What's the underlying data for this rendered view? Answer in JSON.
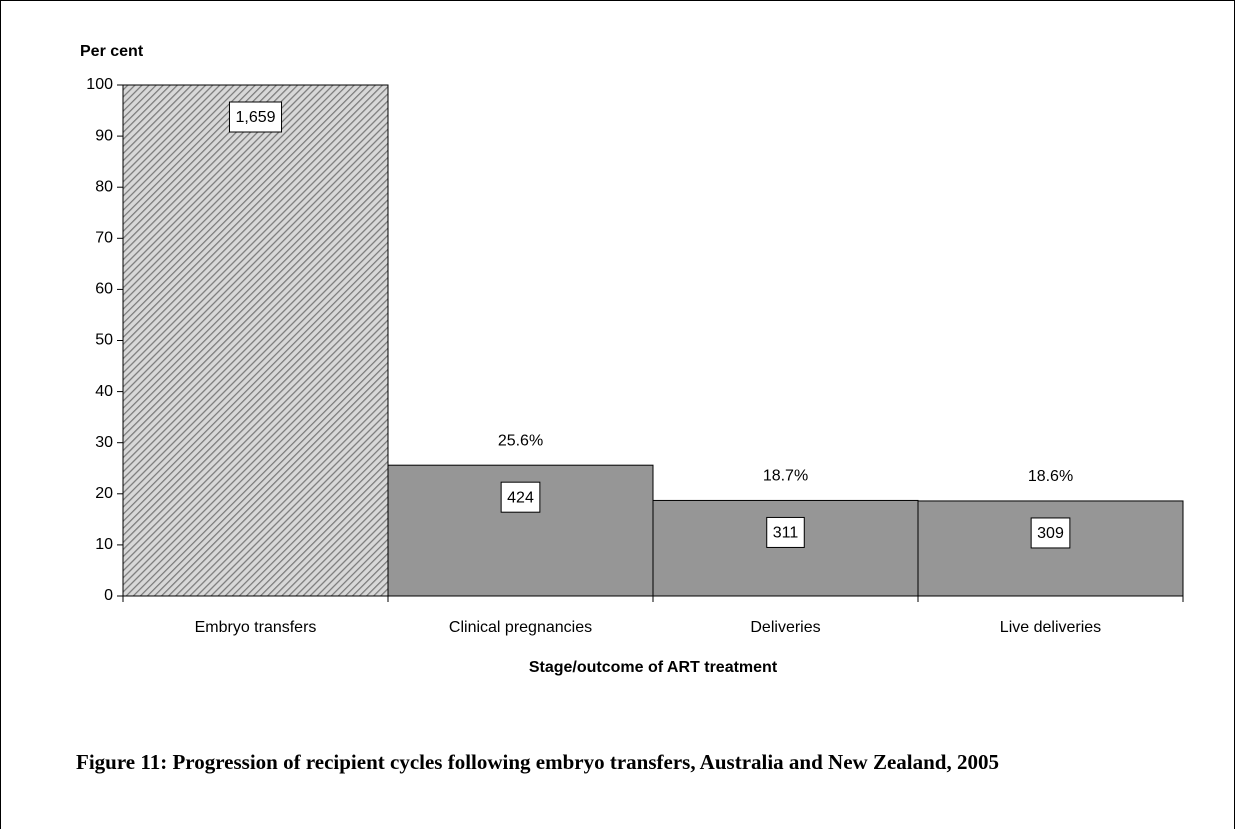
{
  "chart_data": {
    "type": "bar",
    "title": "Figure 11: Progression of recipient cycles following embryo transfers, Australia and New Zealand, 2005",
    "y_axis_label": "Per cent",
    "x_axis_label": "Stage/outcome of ART treatment",
    "categories": [
      "Embryo transfers",
      "Clinical pregnancies",
      "Deliveries",
      "Live deliveries"
    ],
    "values": [
      100,
      25.6,
      18.7,
      18.6
    ],
    "value_labels": [
      null,
      "25.6%",
      "18.7%",
      "18.6%"
    ],
    "counts": [
      {
        "value": 1659,
        "label": "1,659"
      },
      424,
      311,
      309
    ],
    "color": "#969696",
    "hatched": [
      true,
      false,
      false,
      false
    ],
    "ylim": [
      0,
      100
    ],
    "yticks": [
      0,
      10,
      20,
      30,
      40,
      50,
      60,
      70,
      80,
      90,
      100
    ],
    "grid": false
  }
}
